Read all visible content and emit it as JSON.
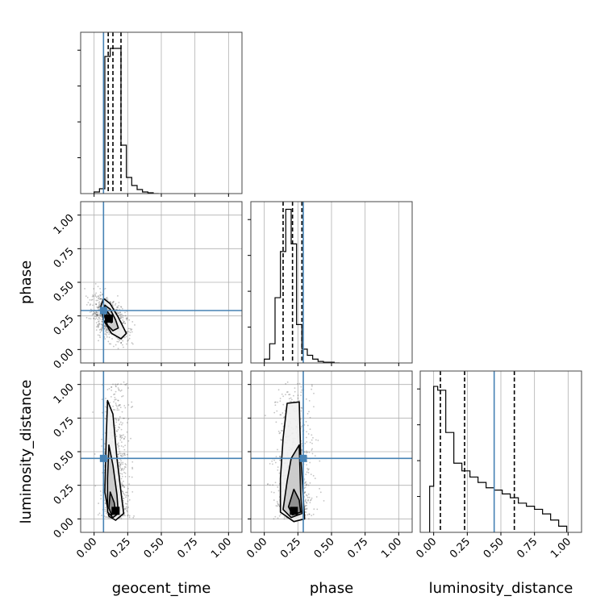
{
  "figure": {
    "parameters": [
      "geocent_time",
      "phase",
      "luminosity_distance"
    ],
    "colors": {
      "truth": "#4682b4",
      "hist": "#000000",
      "grid": "#b0b0b0",
      "contour_fill_light": "#f0f0f0",
      "contour_fill_mid": "#c8c8c8",
      "contour_fill_dark": "#8a8a8a",
      "scatter": "#555555"
    }
  },
  "chart_data": {
    "type": "corner",
    "parameters": [
      "geocent_time",
      "phase",
      "luminosity_distance"
    ],
    "xlabels": [
      "geocent_time",
      "phase",
      "luminosity_distance"
    ],
    "ylabels": [
      "",
      "phase",
      "luminosity_distance"
    ],
    "axis_range": [
      -0.1,
      1.1
    ],
    "tick_values": [
      0.0,
      0.25,
      0.5,
      0.75,
      1.0
    ],
    "tick_labels": [
      "0.00",
      "0.25",
      "0.50",
      "0.75",
      "1.00"
    ],
    "grid": true,
    "truths": {
      "geocent_time": 0.07,
      "phase": 0.29,
      "luminosity_distance": 0.45
    },
    "quantiles": {
      "geocent_time": [
        0.105,
        0.14,
        0.2
      ],
      "phase": [
        0.14,
        0.21,
        0.28
      ],
      "luminosity_distance": [
        0.05,
        0.23,
        0.6
      ]
    },
    "histograms": {
      "geocent_time": {
        "bin_edges": [
          0.0,
          0.04,
          0.08,
          0.12,
          0.16,
          0.2,
          0.24,
          0.28,
          0.32,
          0.36,
          0.4,
          0.44,
          0.48
        ],
        "counts": [
          2,
          6,
          170,
          180,
          180,
          60,
          20,
          10,
          5,
          2,
          1,
          0
        ],
        "ylim": [
          0,
          200
        ]
      },
      "phase": {
        "bin_edges": [
          0.0,
          0.04,
          0.08,
          0.12,
          0.16,
          0.2,
          0.24,
          0.28,
          0.32,
          0.36,
          0.4,
          0.44,
          0.48,
          0.52,
          0.56
        ],
        "counts": [
          5,
          25,
          85,
          145,
          200,
          155,
          50,
          18,
          10,
          5,
          2,
          1,
          1,
          0
        ],
        "ylim": [
          0,
          210
        ]
      },
      "luminosity_distance": {
        "bin_edges": [
          -0.03,
          0.0,
          0.03,
          0.09,
          0.15,
          0.21,
          0.27,
          0.33,
          0.39,
          0.45,
          0.51,
          0.57,
          0.63,
          0.69,
          0.75,
          0.81,
          0.87,
          0.93,
          0.99
        ],
        "counts": [
          60,
          190,
          185,
          130,
          90,
          80,
          72,
          65,
          58,
          55,
          50,
          45,
          38,
          34,
          30,
          24,
          16,
          8
        ],
        "ylim": [
          0,
          210
        ]
      }
    },
    "scatter_2d": [
      {
        "x_param": "geocent_time",
        "y_param": "phase",
        "peak": [
          0.11,
          0.23
        ],
        "spread": [
          0.06,
          0.07
        ],
        "contours": [
          [
            [
              0.07,
              0.38
            ],
            [
              0.12,
              0.34
            ],
            [
              0.18,
              0.24
            ],
            [
              0.24,
              0.12
            ],
            [
              0.2,
              0.08
            ],
            [
              0.13,
              0.12
            ],
            [
              0.07,
              0.22
            ],
            [
              0.05,
              0.32
            ]
          ],
          [
            [
              0.08,
              0.33
            ],
            [
              0.12,
              0.3
            ],
            [
              0.16,
              0.22
            ],
            [
              0.18,
              0.16
            ],
            [
              0.14,
              0.14
            ],
            [
              0.1,
              0.18
            ],
            [
              0.07,
              0.27
            ]
          ],
          [
            [
              0.1,
              0.28
            ],
            [
              0.13,
              0.24
            ],
            [
              0.13,
              0.2
            ],
            [
              0.1,
              0.21
            ],
            [
              0.09,
              0.25
            ]
          ]
        ]
      },
      {
        "x_param": "geocent_time",
        "y_param": "luminosity_distance",
        "peak": [
          0.16,
          0.06
        ],
        "spread": [
          0.05,
          0.28
        ],
        "contours": [
          [
            [
              0.1,
              0.88
            ],
            [
              0.14,
              0.78
            ],
            [
              0.17,
              0.45
            ],
            [
              0.2,
              0.2
            ],
            [
              0.22,
              0.04
            ],
            [
              0.16,
              -0.01
            ],
            [
              0.11,
              0.02
            ],
            [
              0.08,
              0.2
            ],
            [
              0.09,
              0.6
            ]
          ],
          [
            [
              0.11,
              0.55
            ],
            [
              0.14,
              0.4
            ],
            [
              0.17,
              0.18
            ],
            [
              0.18,
              0.04
            ],
            [
              0.14,
              0.01
            ],
            [
              0.1,
              0.05
            ],
            [
              0.1,
              0.3
            ]
          ],
          [
            [
              0.12,
              0.2
            ],
            [
              0.15,
              0.12
            ],
            [
              0.16,
              0.05
            ],
            [
              0.13,
              0.03
            ],
            [
              0.11,
              0.08
            ]
          ]
        ]
      },
      {
        "x_param": "phase",
        "y_param": "luminosity_distance",
        "peak": [
          0.22,
          0.06
        ],
        "spread": [
          0.07,
          0.28
        ],
        "contours": [
          [
            [
              0.17,
              0.86
            ],
            [
              0.26,
              0.87
            ],
            [
              0.27,
              0.5
            ],
            [
              0.29,
              0.15
            ],
            [
              0.3,
              0.0
            ],
            [
              0.22,
              -0.02
            ],
            [
              0.12,
              0.05
            ],
            [
              0.12,
              0.3
            ],
            [
              0.14,
              0.6
            ]
          ],
          [
            [
              0.2,
              0.45
            ],
            [
              0.26,
              0.55
            ],
            [
              0.27,
              0.2
            ],
            [
              0.28,
              0.04
            ],
            [
              0.2,
              0.01
            ],
            [
              0.14,
              0.07
            ],
            [
              0.17,
              0.28
            ]
          ],
          [
            [
              0.22,
              0.22
            ],
            [
              0.26,
              0.14
            ],
            [
              0.27,
              0.05
            ],
            [
              0.21,
              0.03
            ],
            [
              0.18,
              0.09
            ]
          ]
        ]
      }
    ]
  }
}
